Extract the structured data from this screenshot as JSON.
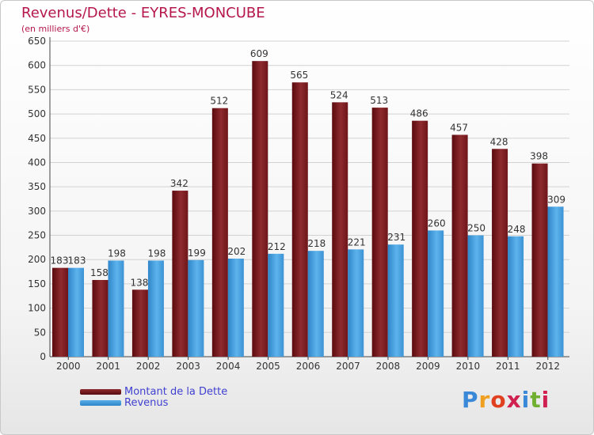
{
  "header": {
    "title": "Revenus/Dette - EYRES-MONCUBE",
    "subtitle": "(en milliers d'€)"
  },
  "legend": {
    "debt_label": "Montant de la Dette",
    "revenue_label": "Revenus"
  },
  "brand": {
    "letters": [
      "P",
      "r",
      "o",
      "x",
      "i",
      "t",
      "i"
    ],
    "colors": [
      "#3a88d8",
      "#f0a020",
      "#e04020",
      "#d02050",
      "#3a88d8",
      "#70b030",
      "#d02050"
    ]
  },
  "chart_data": {
    "type": "bar",
    "categories": [
      "2000",
      "2001",
      "2002",
      "2003",
      "2004",
      "2005",
      "2006",
      "2007",
      "2008",
      "2009",
      "2010",
      "2011",
      "2012"
    ],
    "series": [
      {
        "name": "Montant de la Dette",
        "values": [
          183,
          158,
          138,
          342,
          512,
          609,
          565,
          524,
          513,
          486,
          457,
          428,
          398
        ],
        "color": "#7a1a1f"
      },
      {
        "name": "Revenus",
        "values": [
          183,
          198,
          198,
          199,
          202,
          212,
          218,
          221,
          231,
          260,
          250,
          248,
          309
        ],
        "color": "#4aa3e0"
      }
    ],
    "ylim": [
      0,
      650
    ],
    "yticks": [
      0,
      50,
      100,
      150,
      200,
      250,
      300,
      350,
      400,
      450,
      500,
      550,
      600,
      650
    ],
    "grid": true,
    "legend_position": "bottom-left"
  }
}
